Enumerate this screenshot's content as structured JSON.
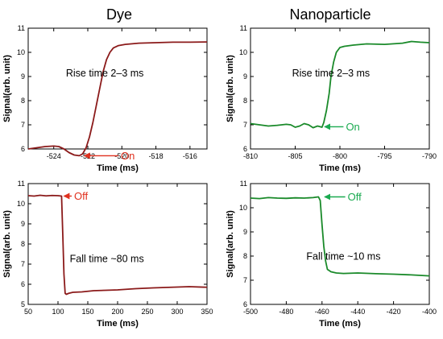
{
  "column_titles": [
    "Dye",
    "Nanoparticle"
  ],
  "colors": {
    "dye": "#8b1a1a",
    "dye_arrow": "#e0301e",
    "nano": "#1a8a2a",
    "nano_arrow": "#1aaa50"
  },
  "chart_data": [
    {
      "type": "line",
      "panel": "dye-rise",
      "xlabel": "Time (ms)",
      "ylabel": "Signal(arb. unit)",
      "xlim": [
        -525.5,
        -515
      ],
      "ylim": [
        6,
        11
      ],
      "xticks": [
        -524,
        -522,
        -520,
        -518,
        -516
      ],
      "yticks": [
        6,
        7,
        8,
        9,
        10,
        11
      ],
      "annotation": "Rise time 2–3 ms",
      "arrow_label": "On",
      "series": [
        {
          "color": "#8b1a1a",
          "x": [
            -525.5,
            -525,
            -524.5,
            -524,
            -523.7,
            -523.4,
            -523.1,
            -522.8,
            -522.5,
            -522.3,
            -522.1,
            -521.9,
            -521.7,
            -521.5,
            -521.3,
            -521.1,
            -520.9,
            -520.7,
            -520.5,
            -520.2,
            -519.8,
            -519,
            -518,
            -517,
            -516,
            -515
          ],
          "y": [
            6.0,
            6.05,
            6.1,
            6.12,
            6.1,
            6.0,
            5.85,
            5.75,
            5.72,
            5.8,
            6.05,
            6.5,
            7.1,
            7.8,
            8.5,
            9.2,
            9.7,
            10.0,
            10.18,
            10.28,
            10.33,
            10.38,
            10.4,
            10.42,
            10.42,
            10.43
          ]
        }
      ]
    },
    {
      "type": "line",
      "panel": "nano-rise",
      "xlabel": "Time (ms)",
      "ylabel": "Signal(arb. unit)",
      "xlim": [
        -810,
        -790
      ],
      "ylim": [
        6,
        11
      ],
      "xticks": [
        -810,
        -805,
        -800,
        -795,
        -790
      ],
      "yticks": [
        6,
        7,
        8,
        9,
        10,
        11
      ],
      "annotation": "Rise time 2–3 ms",
      "arrow_label": "On",
      "series": [
        {
          "color": "#1a8a2a",
          "x": [
            -810,
            -809,
            -808,
            -807,
            -806,
            -805.5,
            -805,
            -804.5,
            -804,
            -803.5,
            -803,
            -802.5,
            -802,
            -801.8,
            -801.5,
            -801.2,
            -801,
            -800.7,
            -800.4,
            -800,
            -799.5,
            -798.5,
            -797,
            -795,
            -793,
            -792,
            -791,
            -790
          ],
          "y": [
            7.05,
            7.0,
            6.95,
            6.98,
            7.02,
            7.0,
            6.9,
            6.95,
            7.05,
            7.0,
            6.88,
            6.95,
            6.9,
            7.1,
            7.6,
            8.3,
            9.0,
            9.6,
            10.0,
            10.2,
            10.25,
            10.3,
            10.35,
            10.33,
            10.38,
            10.45,
            10.42,
            10.4
          ]
        }
      ]
    },
    {
      "type": "line",
      "panel": "dye-fall",
      "xlabel": "Time (ms)",
      "ylabel": "Signal(arb. unit)",
      "xlim": [
        50,
        350
      ],
      "ylim": [
        5,
        11
      ],
      "xticks": [
        50,
        100,
        150,
        200,
        250,
        300,
        350
      ],
      "yticks": [
        5,
        6,
        7,
        8,
        9,
        10,
        11
      ],
      "annotation": "Fall time ~80 ms",
      "arrow_label": "Off",
      "series": [
        {
          "color": "#8b1a1a",
          "x": [
            50,
            60,
            70,
            80,
            90,
            100,
            106,
            108,
            110,
            112,
            114,
            118,
            125,
            140,
            160,
            180,
            200,
            230,
            260,
            290,
            320,
            350
          ],
          "y": [
            10.4,
            10.38,
            10.42,
            10.39,
            10.41,
            10.4,
            10.38,
            8.5,
            6.5,
            5.55,
            5.5,
            5.55,
            5.6,
            5.62,
            5.68,
            5.7,
            5.72,
            5.78,
            5.82,
            5.85,
            5.88,
            5.85
          ]
        }
      ]
    },
    {
      "type": "line",
      "panel": "nano-fall",
      "xlabel": "Time (ms)",
      "ylabel": "Signal(arb. unit)",
      "xlim": [
        -500,
        -400
      ],
      "ylim": [
        6,
        11
      ],
      "xticks": [
        -500,
        -480,
        -460,
        -440,
        -420,
        -400
      ],
      "yticks": [
        6,
        7,
        8,
        9,
        10,
        11
      ],
      "annotation": "Fall time ~10 ms",
      "arrow_label": "Off",
      "series": [
        {
          "color": "#1a8a2a",
          "x": [
            -500,
            -495,
            -490,
            -485,
            -480,
            -475,
            -470,
            -465,
            -462,
            -461,
            -460,
            -459,
            -458,
            -457,
            -455,
            -452,
            -448,
            -440,
            -430,
            -420,
            -410,
            -405,
            -400
          ],
          "y": [
            10.4,
            10.38,
            10.42,
            10.4,
            10.39,
            10.41,
            10.4,
            10.42,
            10.45,
            10.3,
            9.3,
            8.4,
            7.8,
            7.45,
            7.35,
            7.3,
            7.28,
            7.3,
            7.27,
            7.25,
            7.22,
            7.2,
            7.18
          ]
        }
      ]
    }
  ]
}
